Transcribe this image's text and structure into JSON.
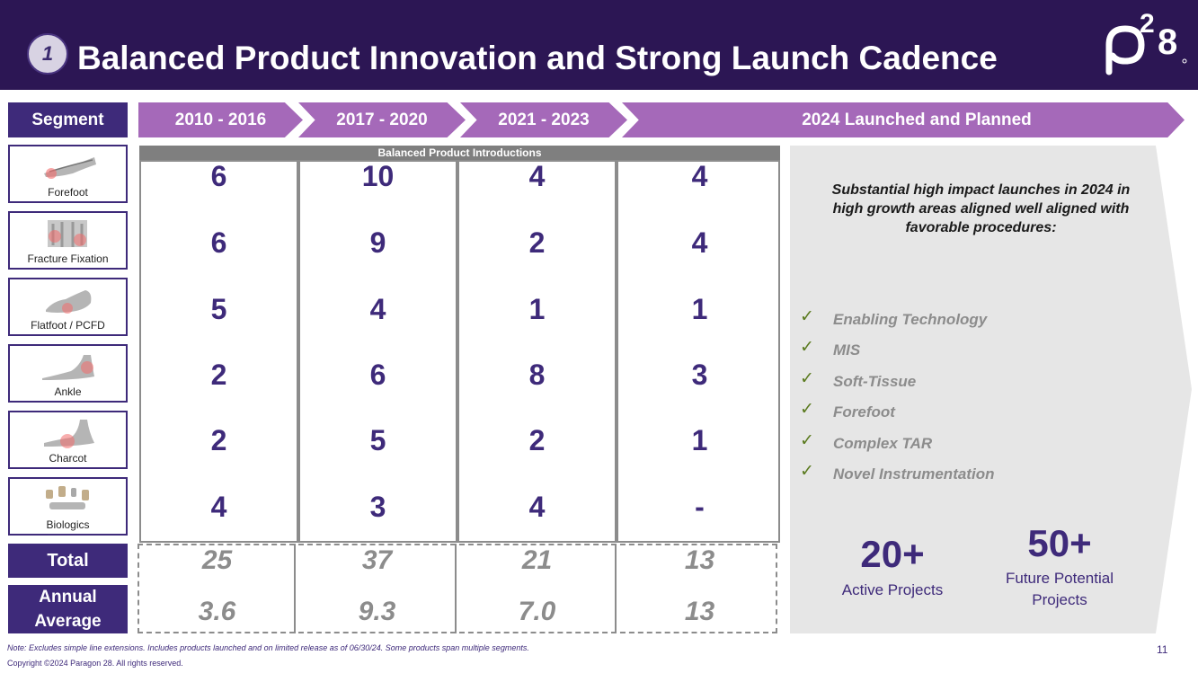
{
  "header": {
    "section_number": "1",
    "title": "Balanced Product Innovation and Strong Launch Cadence"
  },
  "logo": {
    "text": "p28",
    "name": "paragon-28-logo"
  },
  "table": {
    "segment_header": "Segment",
    "periods": [
      "2010 - 2016",
      "2017 - 2020",
      "2021 - 2023",
      "2024 Launched and Planned"
    ],
    "subheader": "Balanced Product Introductions",
    "segments": [
      {
        "label": "Forefoot",
        "values": [
          "6",
          "10",
          "4",
          "4"
        ]
      },
      {
        "label": "Fracture Fixation",
        "values": [
          "6",
          "9",
          "2",
          "4"
        ]
      },
      {
        "label": "Flatfoot / PCFD",
        "values": [
          "5",
          "4",
          "1",
          "1"
        ]
      },
      {
        "label": "Ankle",
        "values": [
          "2",
          "6",
          "8",
          "3"
        ]
      },
      {
        "label": "Charcot",
        "values": [
          "2",
          "5",
          "2",
          "1"
        ]
      },
      {
        "label": "Biologics",
        "values": [
          "4",
          "3",
          "4",
          "-"
        ]
      }
    ],
    "total": {
      "label": "Total",
      "values": [
        "25",
        "37",
        "21",
        "13"
      ]
    },
    "annual_average": {
      "label_line1": "Annual",
      "label_line2": "Average",
      "values": [
        "3.6",
        "9.3",
        "7.0",
        "13"
      ]
    }
  },
  "panel": {
    "headline_line1": "Substantial high impact launches in 2024 in",
    "headline_line2": "high growth areas aligned well aligned with",
    "headline_line3": "favorable procedures:",
    "check_glyph": "✓",
    "items": [
      "Enabling Technology",
      "MIS",
      "Soft-Tissue",
      "Forefoot",
      "Complex TAR",
      "Novel Instrumentation"
    ],
    "stats": [
      {
        "value": "20+",
        "label_line1": "Active Projects",
        "label_line2": ""
      },
      {
        "value": "50+",
        "label_line1": "Future Potential",
        "label_line2": "Projects"
      }
    ]
  },
  "footer": {
    "note": "Note: Excludes simple line extensions. Includes products launched and on limited release as of 06/30/24. Some products span multiple segments.",
    "copyright": "Copyright ©2024 Paragon 28. All rights reserved.",
    "page_number": "11"
  },
  "colors": {
    "header_bg": "#2c1654",
    "primary_purple": "#3e2a7a",
    "chevron_purple": "#a569b9",
    "panel_gray": "#e6e6e6",
    "check_green": "#5a7a1e"
  }
}
